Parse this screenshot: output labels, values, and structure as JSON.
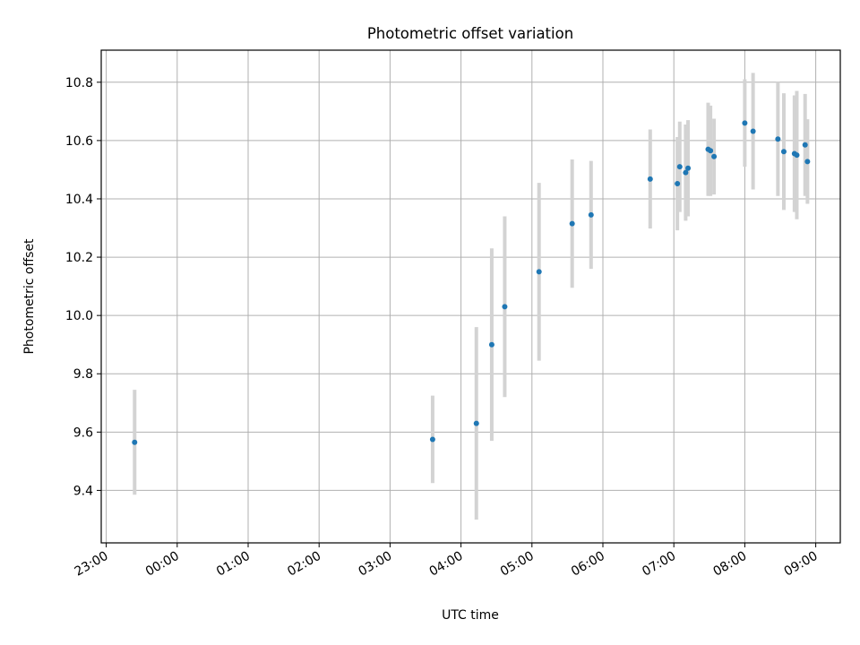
{
  "chart_data": {
    "type": "scatter",
    "title": "Photometric offset variation",
    "xlabel": "UTC time",
    "ylabel": "Photometric offset",
    "x_ticks": [
      "23:00",
      "00:00",
      "01:00",
      "02:00",
      "03:00",
      "04:00",
      "05:00",
      "06:00",
      "07:00",
      "08:00",
      "09:00"
    ],
    "y_ticks": [
      "9.4",
      "9.6",
      "9.8",
      "10.0",
      "10.2",
      "10.4",
      "10.6",
      "10.8"
    ],
    "ylim": [
      9.22,
      10.91
    ],
    "grid": true,
    "colors": {
      "points": "#1f77b4",
      "errorbars": "#d3d3d3",
      "grid": "#b0b0b0"
    },
    "points": [
      {
        "time": "23:24",
        "y": 9.565,
        "err": 0.18
      },
      {
        "time": "03:36",
        "y": 9.575,
        "err": 0.15
      },
      {
        "time": "04:13",
        "y": 9.63,
        "err": 0.33
      },
      {
        "time": "04:26",
        "y": 9.9,
        "err": 0.33
      },
      {
        "time": "04:37",
        "y": 10.03,
        "err": 0.31
      },
      {
        "time": "05:06",
        "y": 10.15,
        "err": 0.305
      },
      {
        "time": "05:34",
        "y": 10.315,
        "err": 0.22
      },
      {
        "time": "05:50",
        "y": 10.345,
        "err": 0.185
      },
      {
        "time": "06:40",
        "y": 10.468,
        "err": 0.17
      },
      {
        "time": "07:03",
        "y": 10.452,
        "err": 0.16
      },
      {
        "time": "07:05",
        "y": 10.51,
        "err": 0.155
      },
      {
        "time": "07:10",
        "y": 10.49,
        "err": 0.165
      },
      {
        "time": "07:12",
        "y": 10.505,
        "err": 0.165
      },
      {
        "time": "07:29",
        "y": 10.57,
        "err": 0.16
      },
      {
        "time": "07:31",
        "y": 10.565,
        "err": 0.155
      },
      {
        "time": "07:34",
        "y": 10.545,
        "err": 0.13
      },
      {
        "time": "08:00",
        "y": 10.66,
        "err": 0.15
      },
      {
        "time": "08:07",
        "y": 10.632,
        "err": 0.2
      },
      {
        "time": "08:28",
        "y": 10.605,
        "err": 0.195
      },
      {
        "time": "08:33",
        "y": 10.562,
        "err": 0.2
      },
      {
        "time": "08:42",
        "y": 10.555,
        "err": 0.2
      },
      {
        "time": "08:44",
        "y": 10.55,
        "err": 0.22
      },
      {
        "time": "08:51",
        "y": 10.585,
        "err": 0.175
      },
      {
        "time": "08:53",
        "y": 10.528,
        "err": 0.145
      }
    ]
  }
}
